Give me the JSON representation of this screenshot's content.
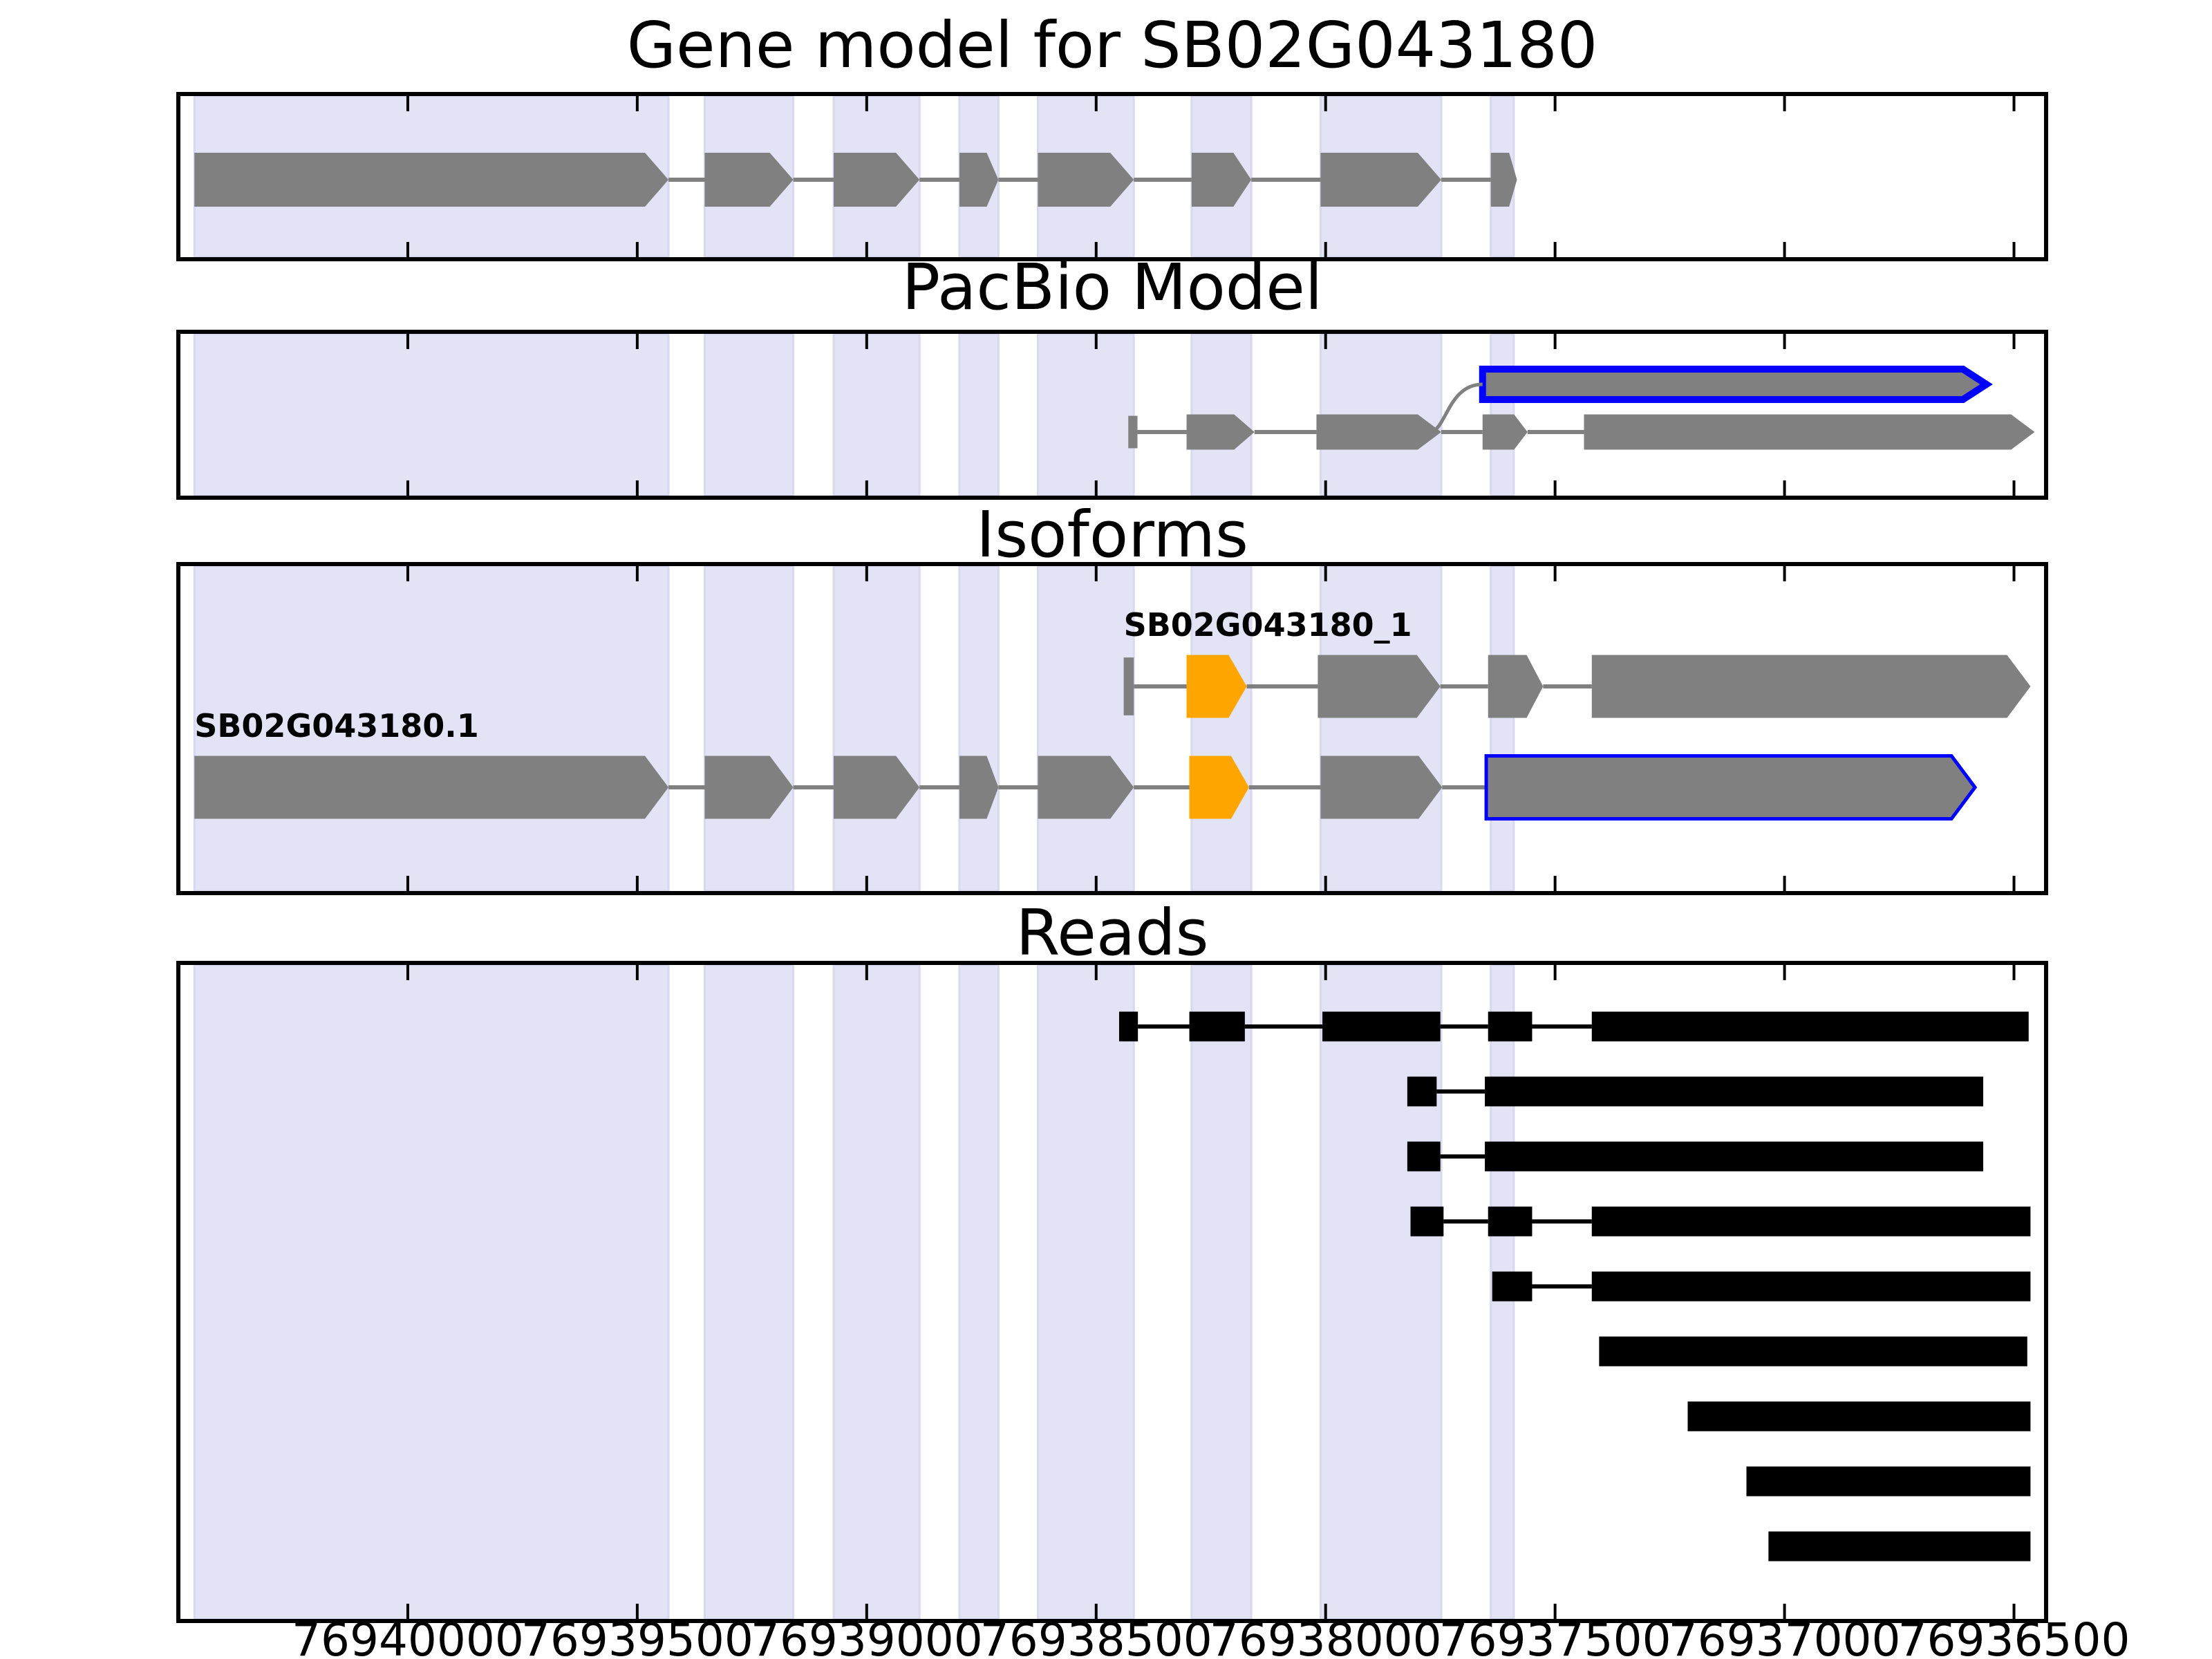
{
  "colors": {
    "band_fill": "#E3E3F6",
    "band_edge": "#D8D8EE",
    "exon_gray": "#808080",
    "exon_orange": "#FFA500",
    "highlight_blue": "#0000FF",
    "read_black": "#000000",
    "connector_gray": "#808080",
    "panel_border": "#000000"
  },
  "chart_data": {
    "type": "genome-browser-tracks",
    "coordinate_axis": {
      "start": 76940500,
      "end": 76936430,
      "orientation": "decreasing-to-right",
      "tick_values": [
        76940000,
        76939500,
        76939000,
        76938500,
        76938000,
        76937500,
        76937000,
        76936500
      ],
      "tick_labels": [
        "76940000",
        "76939500",
        "76939000",
        "76938500",
        "76938000",
        "76937500",
        "76937000",
        "76936500"
      ]
    },
    "highlight_bands": [
      [
        76940465,
        76939432
      ],
      [
        76939353,
        76939160
      ],
      [
        76939072,
        76938885
      ],
      [
        76938798,
        76938713
      ],
      [
        76938627,
        76938418
      ],
      [
        76938292,
        76938162
      ],
      [
        76938011,
        76937748
      ],
      [
        76937640,
        76937590
      ]
    ],
    "panels": [
      {
        "title": "Gene model for SB02G043180",
        "connector_color": "#808080",
        "rows": [
          {
            "features": [
              {
                "s": 76940465,
                "e": 76939432,
                "shape": "arrow",
                "fill": "#808080"
              },
              {
                "s": 76939353,
                "e": 76939160,
                "shape": "arrow",
                "fill": "#808080"
              },
              {
                "s": 76939072,
                "e": 76938885,
                "shape": "arrow",
                "fill": "#808080"
              },
              {
                "s": 76938798,
                "e": 76938713,
                "shape": "arrow",
                "fill": "#808080"
              },
              {
                "s": 76938627,
                "e": 76938418,
                "shape": "arrow",
                "fill": "#808080"
              },
              {
                "s": 76938292,
                "e": 76938162,
                "shape": "arrow",
                "fill": "#808080"
              },
              {
                "s": 76938011,
                "e": 76937748,
                "shape": "arrow",
                "fill": "#808080"
              },
              {
                "s": 76937640,
                "e": 76937583,
                "shape": "arrow",
                "fill": "#808080"
              }
            ]
          }
        ]
      },
      {
        "title": "PacBio Model",
        "connector_color": "#808080",
        "curve": {
          "from_coord": 76937770,
          "to_coord": 76937658
        },
        "rows": [
          {
            "features": [
              {
                "s": 76937658,
                "e": 76936560,
                "shape": "arrow",
                "fill": "#808080",
                "stroke": "#0000FF",
                "sw": 10
              }
            ]
          },
          {
            "features": [
              {
                "s": 76938430,
                "e": 76938410,
                "shape": "bar",
                "fill": "#808080"
              },
              {
                "s": 76938303,
                "e": 76938155,
                "shape": "arrow",
                "fill": "#808080"
              },
              {
                "s": 76938020,
                "e": 76937748,
                "shape": "arrow",
                "fill": "#808080"
              },
              {
                "s": 76937658,
                "e": 76937560,
                "shape": "arrow",
                "fill": "#808080"
              },
              {
                "s": 76937437,
                "e": 76936455,
                "shape": "arrow",
                "fill": "#808080"
              }
            ]
          }
        ]
      },
      {
        "title": "Isoforms",
        "connector_color": "#808080",
        "rows": [
          {
            "label": "SB02G043180_1",
            "features": [
              {
                "s": 76938440,
                "e": 76938418,
                "shape": "bar",
                "fill": "#808080"
              },
              {
                "s": 76938303,
                "e": 76938172,
                "shape": "arrow",
                "fill": "#FFA500"
              },
              {
                "s": 76938017,
                "e": 76937750,
                "shape": "arrow",
                "fill": "#808080"
              },
              {
                "s": 76937646,
                "e": 76937526,
                "shape": "arrow",
                "fill": "#808080"
              },
              {
                "s": 76937420,
                "e": 76936464,
                "shape": "arrow",
                "fill": "#808080"
              }
            ]
          },
          {
            "label": "SB02G043180.1",
            "features": [
              {
                "s": 76940465,
                "e": 76939432,
                "shape": "arrow",
                "fill": "#808080"
              },
              {
                "s": 76939353,
                "e": 76939160,
                "shape": "arrow",
                "fill": "#808080"
              },
              {
                "s": 76939072,
                "e": 76938885,
                "shape": "arrow",
                "fill": "#808080"
              },
              {
                "s": 76938798,
                "e": 76938713,
                "shape": "arrow",
                "fill": "#808080"
              },
              {
                "s": 76938627,
                "e": 76938418,
                "shape": "arrow",
                "fill": "#808080"
              },
              {
                "s": 76938297,
                "e": 76938167,
                "shape": "arrow",
                "fill": "#FFA500"
              },
              {
                "s": 76938011,
                "e": 76937746,
                "shape": "arrow",
                "fill": "#808080"
              },
              {
                "s": 76937650,
                "e": 76936585,
                "shape": "arrow",
                "fill": "#808080",
                "stroke": "#0000FF",
                "sw": 5
              }
            ]
          }
        ]
      },
      {
        "title": "Reads",
        "connector_color": "#000000",
        "rows": [
          {
            "features": [
              {
                "s": 76938450,
                "e": 76938409,
                "shape": "rect",
                "fill": "#000000"
              },
              {
                "s": 76938297,
                "e": 76938176,
                "shape": "rect",
                "fill": "#000000"
              },
              {
                "s": 76938007,
                "e": 76937750,
                "shape": "rect",
                "fill": "#000000"
              },
              {
                "s": 76937646,
                "e": 76937550,
                "shape": "rect",
                "fill": "#000000"
              },
              {
                "s": 76937420,
                "e": 76936468,
                "shape": "rect",
                "fill": "#000000"
              }
            ]
          },
          {
            "features": [
              {
                "s": 76937822,
                "e": 76937758,
                "shape": "rect",
                "fill": "#000000"
              },
              {
                "s": 76937653,
                "e": 76936567,
                "shape": "rect",
                "fill": "#000000"
              }
            ]
          },
          {
            "features": [
              {
                "s": 76937822,
                "e": 76937750,
                "shape": "rect",
                "fill": "#000000"
              },
              {
                "s": 76937653,
                "e": 76936567,
                "shape": "rect",
                "fill": "#000000"
              }
            ]
          },
          {
            "features": [
              {
                "s": 76937815,
                "e": 76937743,
                "shape": "rect",
                "fill": "#000000"
              },
              {
                "s": 76937646,
                "e": 76937550,
                "shape": "rect",
                "fill": "#000000"
              },
              {
                "s": 76937420,
                "e": 76936464,
                "shape": "rect",
                "fill": "#000000"
              }
            ]
          },
          {
            "features": [
              {
                "s": 76937637,
                "e": 76937550,
                "shape": "rect",
                "fill": "#000000"
              },
              {
                "s": 76937420,
                "e": 76936464,
                "shape": "rect",
                "fill": "#000000"
              }
            ]
          },
          {
            "features": [
              {
                "s": 76937404,
                "e": 76936471,
                "shape": "rect",
                "fill": "#000000"
              }
            ]
          },
          {
            "features": [
              {
                "s": 76937211,
                "e": 76936464,
                "shape": "rect",
                "fill": "#000000"
              }
            ]
          },
          {
            "features": [
              {
                "s": 76937083,
                "e": 76936464,
                "shape": "rect",
                "fill": "#000000"
              }
            ]
          },
          {
            "features": [
              {
                "s": 76937035,
                "e": 76936464,
                "shape": "rect",
                "fill": "#000000"
              }
            ]
          }
        ]
      }
    ]
  }
}
